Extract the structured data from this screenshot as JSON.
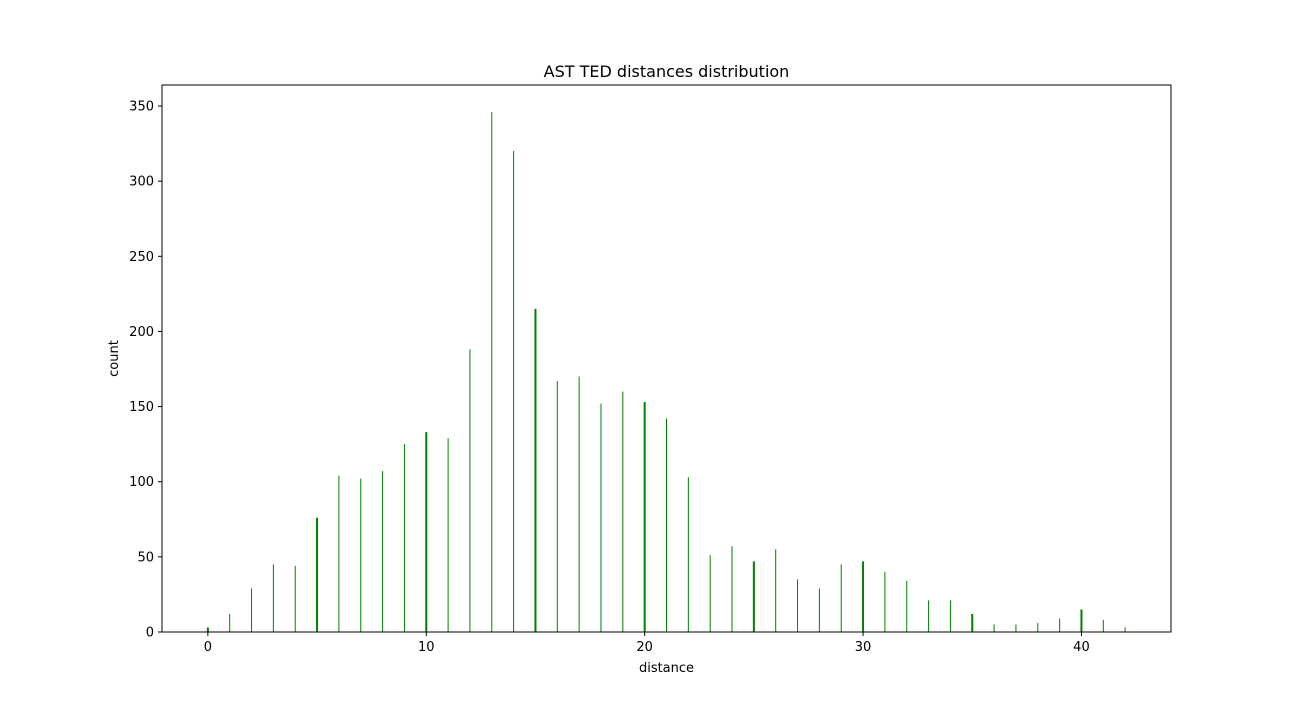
{
  "chart_data": {
    "type": "bar",
    "title": "AST TED distances distribution",
    "xlabel": "distance",
    "ylabel": "count",
    "xlim": [
      -2.1,
      44.1
    ],
    "ylim": [
      0,
      364
    ],
    "x_ticks": [
      0,
      10,
      20,
      30,
      40
    ],
    "y_ticks": [
      0,
      50,
      100,
      150,
      200,
      250,
      300,
      350
    ],
    "grid": false,
    "legend": "none",
    "bar_color": "#008000",
    "x": [
      0,
      1,
      2,
      3,
      4,
      5,
      6,
      7,
      8,
      9,
      10,
      11,
      12,
      13,
      14,
      15,
      16,
      17,
      18,
      19,
      20,
      21,
      22,
      23,
      24,
      25,
      26,
      27,
      28,
      29,
      30,
      31,
      32,
      33,
      34,
      35,
      36,
      37,
      38,
      39,
      40,
      41,
      42
    ],
    "values": [
      3,
      12,
      29,
      45,
      44,
      76,
      104,
      102,
      107,
      125,
      133,
      129,
      188,
      346,
      320,
      215,
      167,
      170,
      152,
      160,
      153,
      142,
      103,
      51,
      57,
      47,
      55,
      35,
      29,
      45,
      47,
      40,
      34,
      21,
      21,
      12,
      5,
      5,
      6,
      9,
      15,
      8,
      3
    ]
  }
}
